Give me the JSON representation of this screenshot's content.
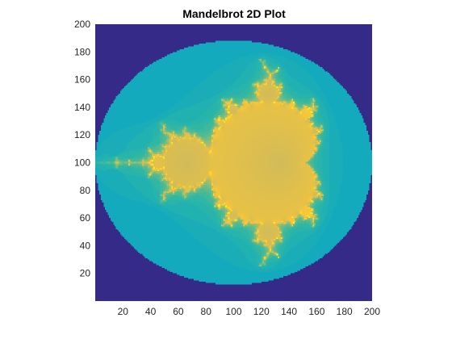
{
  "chart_data": {
    "type": "heatmap",
    "title": "Mandelbrot 2D Plot",
    "xlabel": "",
    "ylabel": "",
    "xlim": [
      0,
      200
    ],
    "ylim": [
      0,
      200
    ],
    "x_ticks": [
      20,
      40,
      60,
      80,
      100,
      120,
      140,
      160,
      180,
      200
    ],
    "y_ticks": [
      20,
      40,
      60,
      80,
      100,
      120,
      140,
      160,
      180,
      200
    ],
    "grid": false,
    "resolution": 200,
    "complex_region": {
      "re": [
        -2.0,
        1.0
      ],
      "im": [
        -1.5,
        1.5
      ]
    },
    "max_iterations": 30,
    "colormap": [
      "#352a87",
      "#0f5cdd",
      "#1481d6",
      "#06a4ca",
      "#2eb7a4",
      "#87bf77",
      "#d1bb59",
      "#fec832",
      "#f9fb0e"
    ],
    "background_color": "#352a87"
  }
}
